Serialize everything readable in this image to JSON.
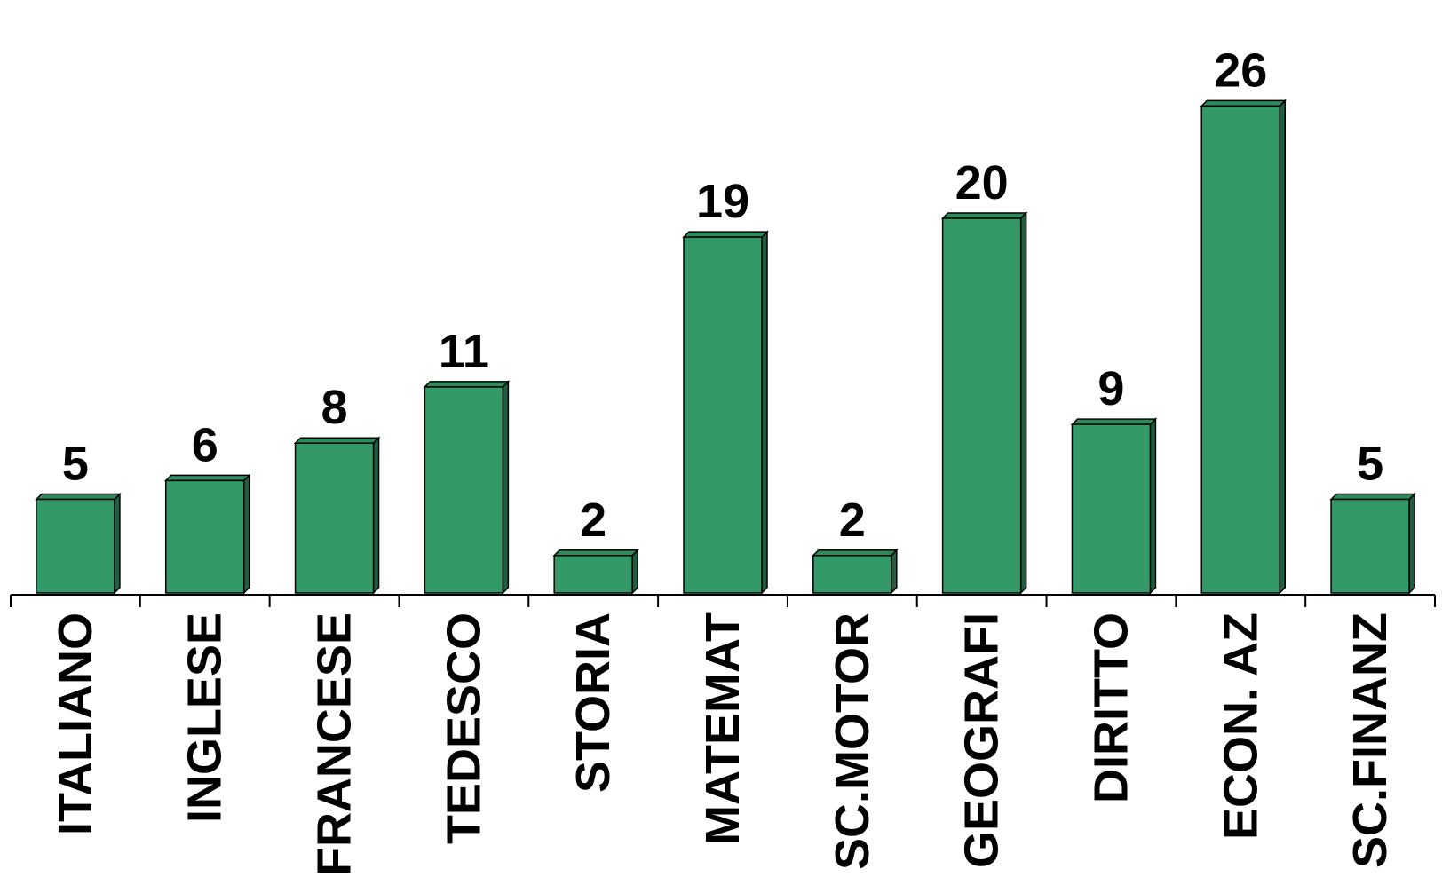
{
  "colors": {
    "bar_front": "#339966",
    "bar_top": "#2d8a5a",
    "bar_side": "#1f5e3e",
    "edge": "#000000",
    "axis": "#000000"
  },
  "chart_data": {
    "type": "bar",
    "title": "",
    "xlabel": "",
    "ylabel": "",
    "ylim": [
      0,
      30
    ],
    "grid": false,
    "legend": "none",
    "categories": [
      "ITALIANO",
      "INGLESE",
      "FRANCESE",
      "TEDESCO",
      "STORIA",
      "MATEMAT",
      "SC.MOTOR",
      "GEOGRAFI",
      "DIRITTO",
      "ECON. AZ",
      "SC.FINANZ"
    ],
    "values": [
      5,
      6,
      8,
      11,
      2,
      19,
      2,
      20,
      9,
      26,
      5
    ],
    "data_labels": [
      "5",
      "6",
      "8",
      "11",
      "2",
      "19",
      "2",
      "20",
      "9",
      "26",
      "5"
    ]
  }
}
